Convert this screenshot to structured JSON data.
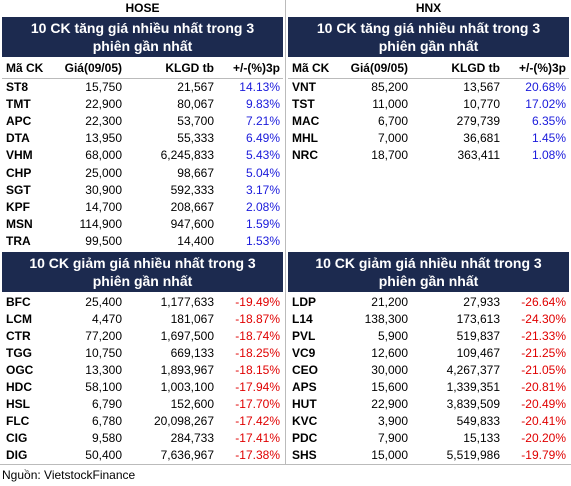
{
  "exchanges": [
    {
      "name": "HOSE",
      "gainers": {
        "title": "10 CK tăng giá nhiều nhất trong 3 phiên gần nhất",
        "columns": [
          "Mã CK",
          "Giá(09/05)",
          "KLGD tb",
          "+/-(%)3p"
        ],
        "rows": [
          [
            "ST8",
            "15,750",
            "21,567",
            "14.13%"
          ],
          [
            "TMT",
            "22,900",
            "80,067",
            "9.83%"
          ],
          [
            "APC",
            "22,300",
            "53,700",
            "7.21%"
          ],
          [
            "DTA",
            "13,950",
            "55,333",
            "6.49%"
          ],
          [
            "VHM",
            "68,000",
            "6,245,833",
            "5.43%"
          ],
          [
            "CHP",
            "25,000",
            "98,667",
            "5.04%"
          ],
          [
            "SGT",
            "30,900",
            "592,333",
            "3.17%"
          ],
          [
            "KPF",
            "14,700",
            "208,667",
            "2.08%"
          ],
          [
            "MSN",
            "114,900",
            "947,600",
            "1.59%"
          ],
          [
            "TRA",
            "99,500",
            "14,400",
            "1.53%"
          ]
        ]
      },
      "losers": {
        "title": "10 CK giảm giá nhiều nhất trong 3 phiên gần nhất",
        "rows": [
          [
            "BFC",
            "25,400",
            "1,177,633",
            "-19.49%"
          ],
          [
            "LCM",
            "4,470",
            "181,067",
            "-18.87%"
          ],
          [
            "CTR",
            "77,200",
            "1,697,500",
            "-18.74%"
          ],
          [
            "TGG",
            "10,750",
            "669,133",
            "-18.25%"
          ],
          [
            "OGC",
            "13,300",
            "1,893,967",
            "-18.15%"
          ],
          [
            "HDC",
            "58,100",
            "1,003,100",
            "-17.94%"
          ],
          [
            "HSL",
            "6,790",
            "152,600",
            "-17.70%"
          ],
          [
            "FLC",
            "6,780",
            "20,098,267",
            "-17.42%"
          ],
          [
            "CIG",
            "9,580",
            "284,733",
            "-17.41%"
          ],
          [
            "DIG",
            "50,400",
            "7,636,967",
            "-17.38%"
          ]
        ]
      }
    },
    {
      "name": "HNX",
      "gainers": {
        "title": "10 CK tăng giá nhiều nhất trong 3 phiên gần nhất",
        "columns": [
          "Mã CK",
          "Giá(09/05)",
          "KLGD tb",
          "+/-(%)3p"
        ],
        "rows": [
          [
            "VNT",
            "85,200",
            "13,567",
            "20.68%"
          ],
          [
            "TST",
            "11,000",
            "10,770",
            "17.02%"
          ],
          [
            "MAC",
            "6,700",
            "279,739",
            "6.35%"
          ],
          [
            "MHL",
            "7,000",
            "36,681",
            "1.45%"
          ],
          [
            "NRC",
            "18,700",
            "363,411",
            "1.08%"
          ]
        ]
      },
      "losers": {
        "title": "10 CK giảm giá nhiều nhất trong 3 phiên gần nhất",
        "rows": [
          [
            "LDP",
            "21,200",
            "27,933",
            "-26.64%"
          ],
          [
            "L14",
            "138,300",
            "173,613",
            "-24.30%"
          ],
          [
            "PVL",
            "5,900",
            "519,837",
            "-21.33%"
          ],
          [
            "VC9",
            "12,600",
            "109,467",
            "-21.25%"
          ],
          [
            "CEO",
            "30,000",
            "4,267,377",
            "-21.05%"
          ],
          [
            "APS",
            "15,600",
            "1,339,351",
            "-20.81%"
          ],
          [
            "HUT",
            "22,900",
            "3,839,509",
            "-20.49%"
          ],
          [
            "KVC",
            "3,900",
            "549,833",
            "-20.41%"
          ],
          [
            "PDC",
            "7,900",
            "15,133",
            "-20.20%"
          ],
          [
            "SHS",
            "15,000",
            "5,519,986",
            "-19.79%"
          ]
        ]
      }
    }
  ],
  "source": "Nguồn: VietstockFinance"
}
